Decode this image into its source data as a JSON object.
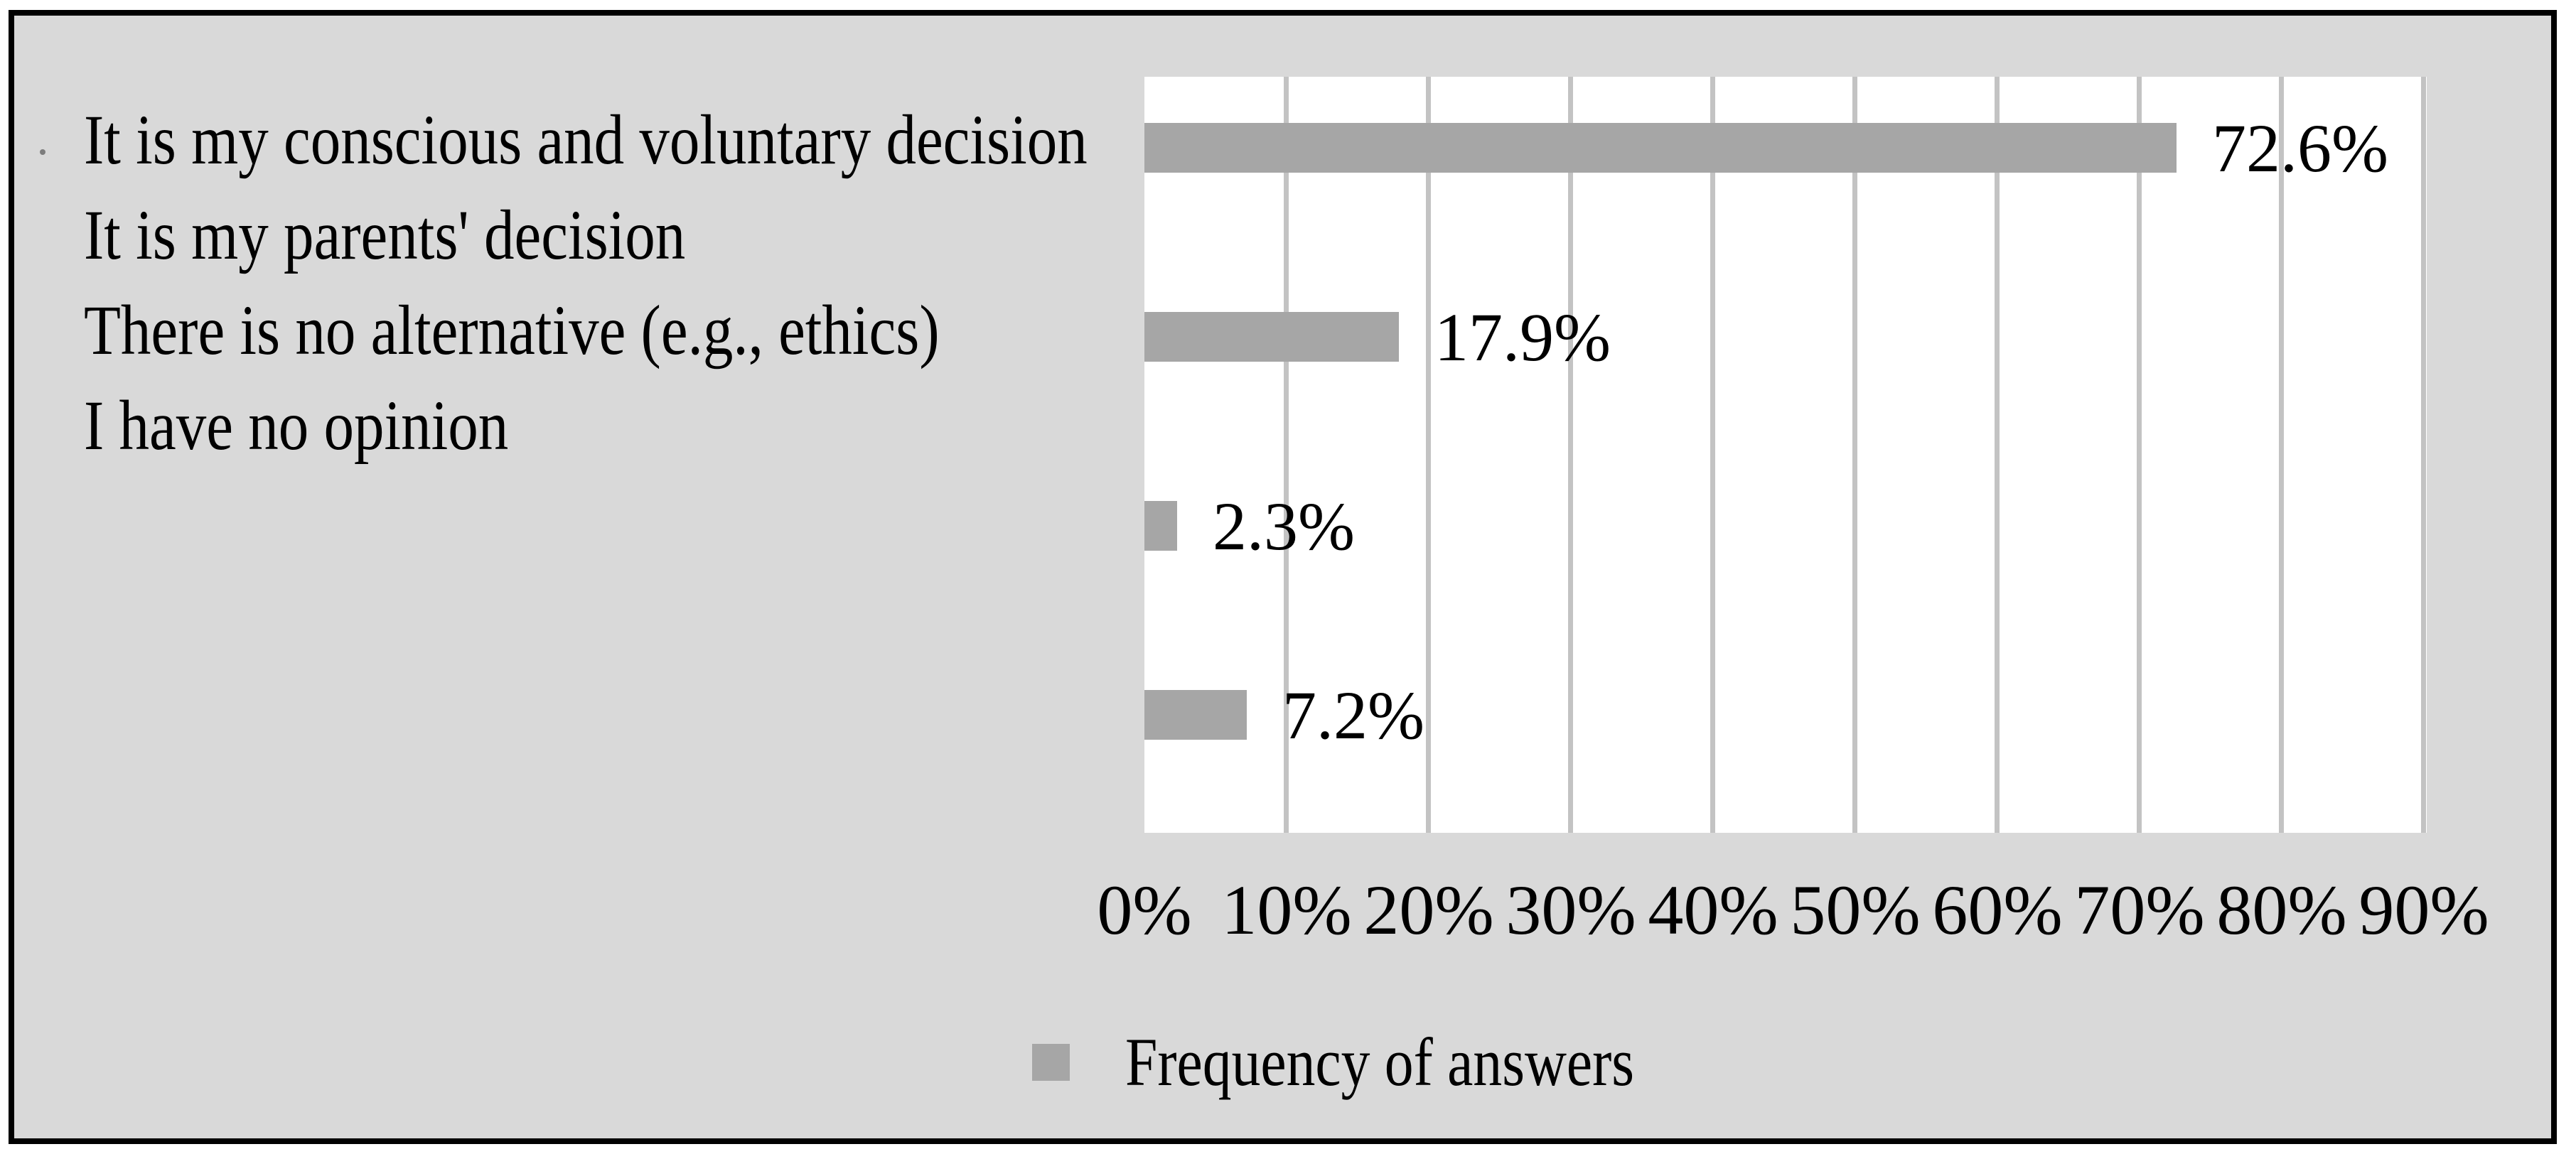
{
  "chart_data": {
    "type": "bar",
    "orientation": "horizontal",
    "categories": [
      "It is my conscious and voluntary decision",
      "It is my parents' decision",
      "There is no alternative (e.g., ethics)",
      "I have no opinion"
    ],
    "series": [
      {
        "name": "Frequency of answers",
        "values": [
          72.6,
          17.9,
          2.3,
          7.2
        ]
      }
    ],
    "value_labels": [
      "72.6%",
      "17.9%",
      "2.3%",
      "7.2%"
    ],
    "x_tick_labels": [
      "0%",
      "10%",
      "20%",
      "30%",
      "40%",
      "50%",
      "60%",
      "70%",
      "80%",
      "90%"
    ],
    "xlim": [
      0,
      90
    ],
    "x_tick_step": 10,
    "grid": "vertical",
    "legend": {
      "label": "Frequency of answers",
      "position": "bottom-left"
    },
    "colors": {
      "bar": "#a6a6a6",
      "panel_bg": "#d9d9d9",
      "plot_bg": "#ffffff",
      "gridline": "#c3c3c3",
      "frame_border": "#000000",
      "text": "#000000"
    }
  }
}
